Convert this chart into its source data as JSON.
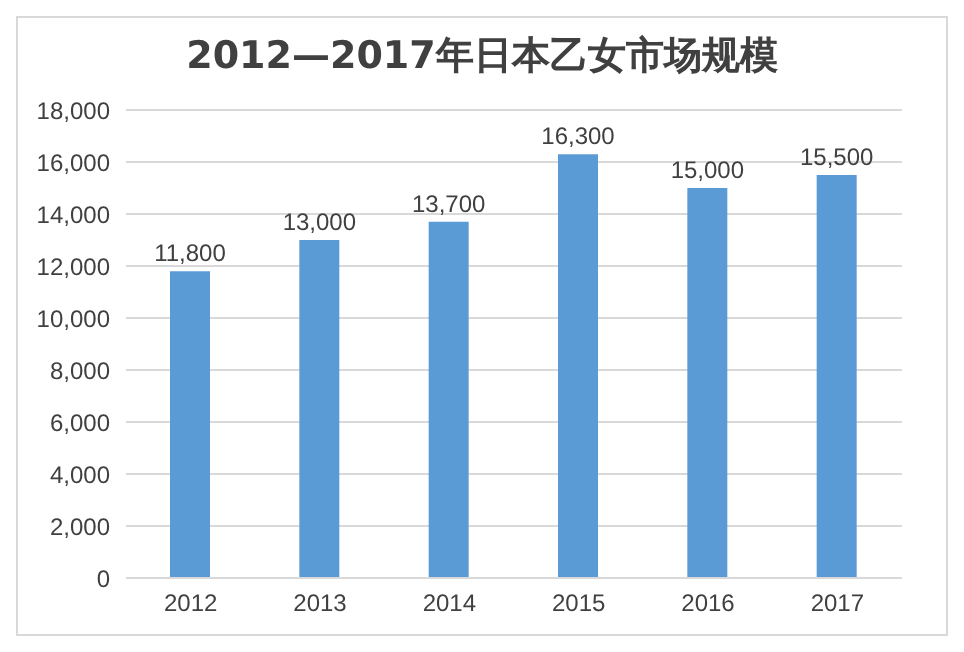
{
  "chart_data": {
    "type": "bar",
    "title": "2012—2017年日本乙女市场规模",
    "categories": [
      "2012",
      "2013",
      "2014",
      "2015",
      "2016",
      "2017"
    ],
    "values": [
      11800,
      13000,
      13700,
      16300,
      15000,
      15500
    ],
    "value_labels": [
      "11,800",
      "13,000",
      "13,700",
      "16,300",
      "15,000",
      "15,500"
    ],
    "color": "#5b9bd5",
    "ylim": [
      0,
      18000
    ],
    "yticks": [
      {
        "value": 0,
        "label": "0"
      },
      {
        "value": 2000,
        "label": "2,000"
      },
      {
        "value": 4000,
        "label": "4,000"
      },
      {
        "value": 6000,
        "label": "6,000"
      },
      {
        "value": 8000,
        "label": "8,000"
      },
      {
        "value": 10000,
        "label": "10,000"
      },
      {
        "value": 12000,
        "label": "12,000"
      },
      {
        "value": 14000,
        "label": "14,000"
      },
      {
        "value": 16000,
        "label": "16,000"
      },
      {
        "value": 18000,
        "label": "18,000"
      }
    ],
    "grid": "y"
  }
}
